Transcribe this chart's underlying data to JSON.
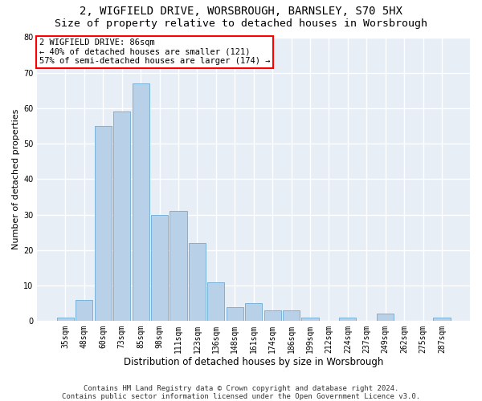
{
  "title_line1": "2, WIGFIELD DRIVE, WORSBROUGH, BARNSLEY, S70 5HX",
  "title_line2": "Size of property relative to detached houses in Worsbrough",
  "xlabel": "Distribution of detached houses by size in Worsbrough",
  "ylabel": "Number of detached properties",
  "categories": [
    "35sqm",
    "48sqm",
    "60sqm",
    "73sqm",
    "85sqm",
    "98sqm",
    "111sqm",
    "123sqm",
    "136sqm",
    "148sqm",
    "161sqm",
    "174sqm",
    "186sqm",
    "199sqm",
    "212sqm",
    "224sqm",
    "237sqm",
    "249sqm",
    "262sqm",
    "275sqm",
    "287sqm"
  ],
  "values": [
    1,
    6,
    55,
    59,
    67,
    30,
    31,
    22,
    11,
    4,
    5,
    3,
    3,
    1,
    0,
    1,
    0,
    2,
    0,
    0,
    1
  ],
  "bar_color": "#b8d0e8",
  "bar_edge_color": "#6aaad4",
  "annotation_line1": "2 WIGFIELD DRIVE: 86sqm",
  "annotation_line2": "← 40% of detached houses are smaller (121)",
  "annotation_line3": "57% of semi-detached houses are larger (174) →",
  "annotation_box_color": "white",
  "annotation_box_edge_color": "red",
  "ylim": [
    0,
    80
  ],
  "yticks": [
    0,
    10,
    20,
    30,
    40,
    50,
    60,
    70,
    80
  ],
  "background_color": "#e8eef6",
  "grid_color": "white",
  "footer_line1": "Contains HM Land Registry data © Crown copyright and database right 2024.",
  "footer_line2": "Contains public sector information licensed under the Open Government Licence v3.0.",
  "title_fontsize": 10,
  "subtitle_fontsize": 9.5,
  "xlabel_fontsize": 8.5,
  "ylabel_fontsize": 8,
  "tick_fontsize": 7,
  "annotation_fontsize": 7.5,
  "footer_fontsize": 6.5
}
